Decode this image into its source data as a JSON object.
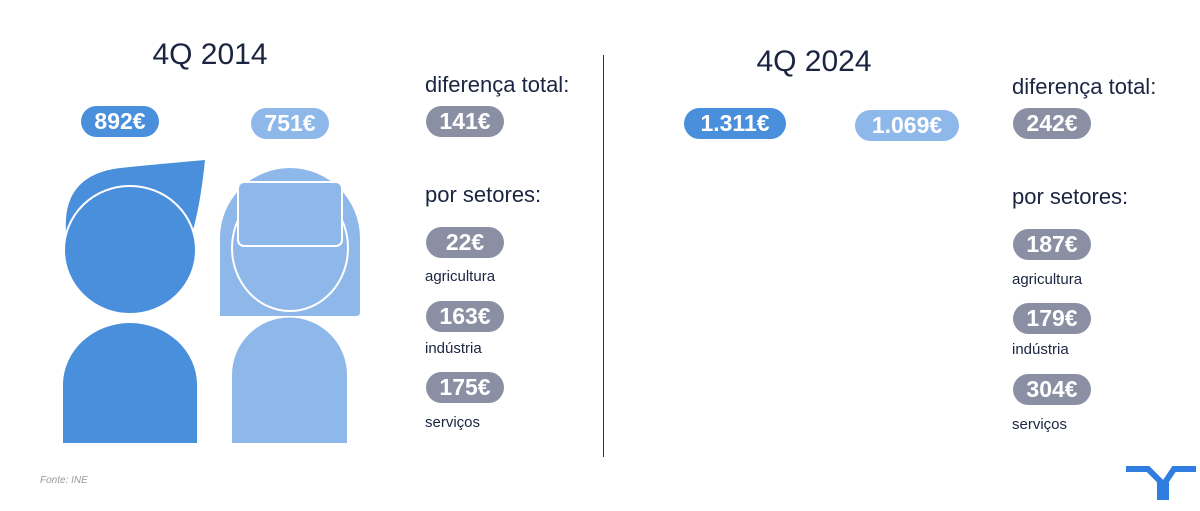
{
  "panels": [
    {
      "title": "4Q 2014",
      "male": "892€",
      "female": "751€",
      "total_label": "diferença total:",
      "total": "141€",
      "sectors_label": "por setores:",
      "sectors": [
        {
          "value": "22€",
          "label": "agricultura"
        },
        {
          "value": "163€",
          "label": "indústria"
        },
        {
          "value": "175€",
          "label": "serviços"
        }
      ]
    },
    {
      "title": "4Q 2024",
      "male": "1.311€",
      "female": "1.069€",
      "total_label": "diferença total:",
      "total": "242€",
      "sectors_label": "por setores:",
      "sectors": [
        {
          "value": "187€",
          "label": "agricultura"
        },
        {
          "value": "179€",
          "label": "indústria"
        },
        {
          "value": "304€",
          "label": "serviços"
        }
      ]
    }
  ],
  "source": "Fonte: INE",
  "colors": {
    "male": "#4a8fdc",
    "female": "#8fb8ea",
    "difference": "#8b8fa3"
  }
}
